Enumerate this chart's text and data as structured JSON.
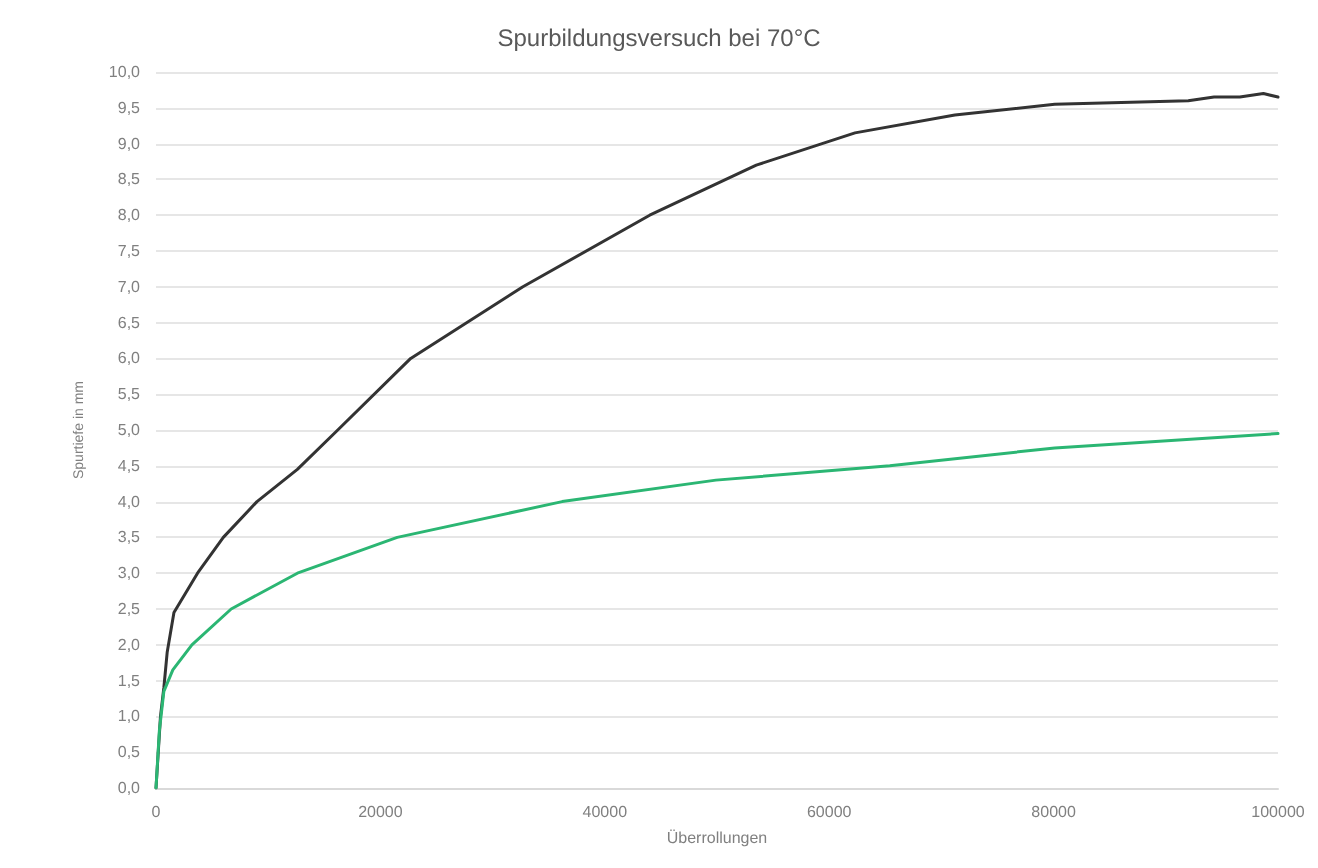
{
  "chart_data": {
    "type": "line",
    "title": "Spurbildungsversuch bei 70°C",
    "xlabel": "Überrollungen",
    "ylabel": "Spurtiefe in mm",
    "series": [
      {
        "color": "#333333",
        "x": [
          0,
          400,
          700,
          1000,
          1600,
          3700,
          6000,
          9000,
          12600,
          16200,
          22700,
          32700,
          44000,
          53500,
          62300,
          71200,
          80100,
          92000,
          94300,
          96600,
          98700,
          100000
        ],
        "values": [
          0,
          1.0,
          1.4,
          1.9,
          2.45,
          3.0,
          3.5,
          4.0,
          4.45,
          5.0,
          6.0,
          7.0,
          8.0,
          8.7,
          9.15,
          9.4,
          9.55,
          9.6,
          9.65,
          9.65,
          9.7,
          9.65
        ]
      },
      {
        "color": "#2bb673",
        "x": [
          0,
          300,
          700,
          1500,
          3200,
          6700,
          12600,
          21500,
          36200,
          49900,
          65400,
          80100,
          100000
        ],
        "values": [
          0,
          0.8,
          1.35,
          1.65,
          2.0,
          2.5,
          3.0,
          3.5,
          4.0,
          4.3,
          4.5,
          4.75,
          4.95
        ]
      }
    ],
    "xlim": [
      0,
      100000
    ],
    "xticks": [
      0,
      20000,
      40000,
      60000,
      80000,
      100000
    ],
    "ylim": [
      0,
      10
    ],
    "yticks": [
      {
        "value": 0,
        "label": "0,0"
      },
      {
        "value": 0.5,
        "label": "0,5"
      },
      {
        "value": 1,
        "label": "1,0"
      },
      {
        "value": 1.5,
        "label": "1,5"
      },
      {
        "value": 2,
        "label": "2,0"
      },
      {
        "value": 2.5,
        "label": "2,5"
      },
      {
        "value": 3,
        "label": "3,0"
      },
      {
        "value": 3.5,
        "label": "3,5"
      },
      {
        "value": 4,
        "label": "4,0"
      },
      {
        "value": 4.5,
        "label": "4,5"
      },
      {
        "value": 5,
        "label": "5,0"
      },
      {
        "value": 5.5,
        "label": "5,5"
      },
      {
        "value": 6,
        "label": "6,0"
      },
      {
        "value": 6.5,
        "label": "6,5"
      },
      {
        "value": 7,
        "label": "7,0"
      },
      {
        "value": 7.5,
        "label": "7,5"
      },
      {
        "value": 8,
        "label": "8,0"
      },
      {
        "value": 8.5,
        "label": "8,5"
      },
      {
        "value": 9,
        "label": "9,0"
      },
      {
        "value": 9.5,
        "label": "9,5"
      },
      {
        "value": 10,
        "label": "10,0"
      }
    ],
    "grid": "y",
    "marker": "none",
    "line_style": "solid"
  }
}
